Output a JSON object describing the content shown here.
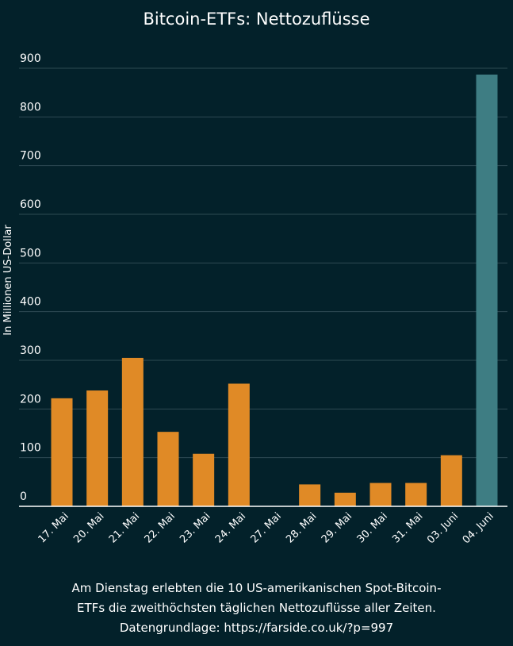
{
  "chart_data": {
    "type": "bar",
    "title": "Bitcoin-ETFs: Nettozuflüsse",
    "ylabel": "In Millionen US-Dollar",
    "xlabel": "",
    "ylim": [
      0,
      900
    ],
    "yticks": [
      0,
      100,
      200,
      300,
      400,
      500,
      600,
      700,
      800,
      900
    ],
    "grid": true,
    "categories": [
      "17. Mai",
      "20. Mai",
      "21. Mai",
      "22. Mai",
      "23. Mai",
      "24. Mai",
      "27. Mai",
      "28. Mai",
      "29. Mai",
      "30. Mai",
      "31. Mai",
      "03. Juni",
      "04. Juni"
    ],
    "values": [
      222,
      238,
      305,
      153,
      108,
      252,
      0,
      45,
      28,
      48,
      48,
      105,
      887
    ],
    "colors": {
      "default": "#e08a26",
      "highlight": "#3e7d83",
      "highlight_category": "04. Juni",
      "background": "#03212a",
      "grid": "#2e4a53",
      "axis": "#ffffff"
    }
  },
  "caption": {
    "line1": "Am Dienstag erlebten die 10 US-amerikanischen Spot-Bitcoin-",
    "line2": "ETFs die zweithöchsten täglichen Nettozuflüsse aller Zeiten.",
    "line3": "Datengrundlage: https://farside.co.uk/?p=997"
  }
}
